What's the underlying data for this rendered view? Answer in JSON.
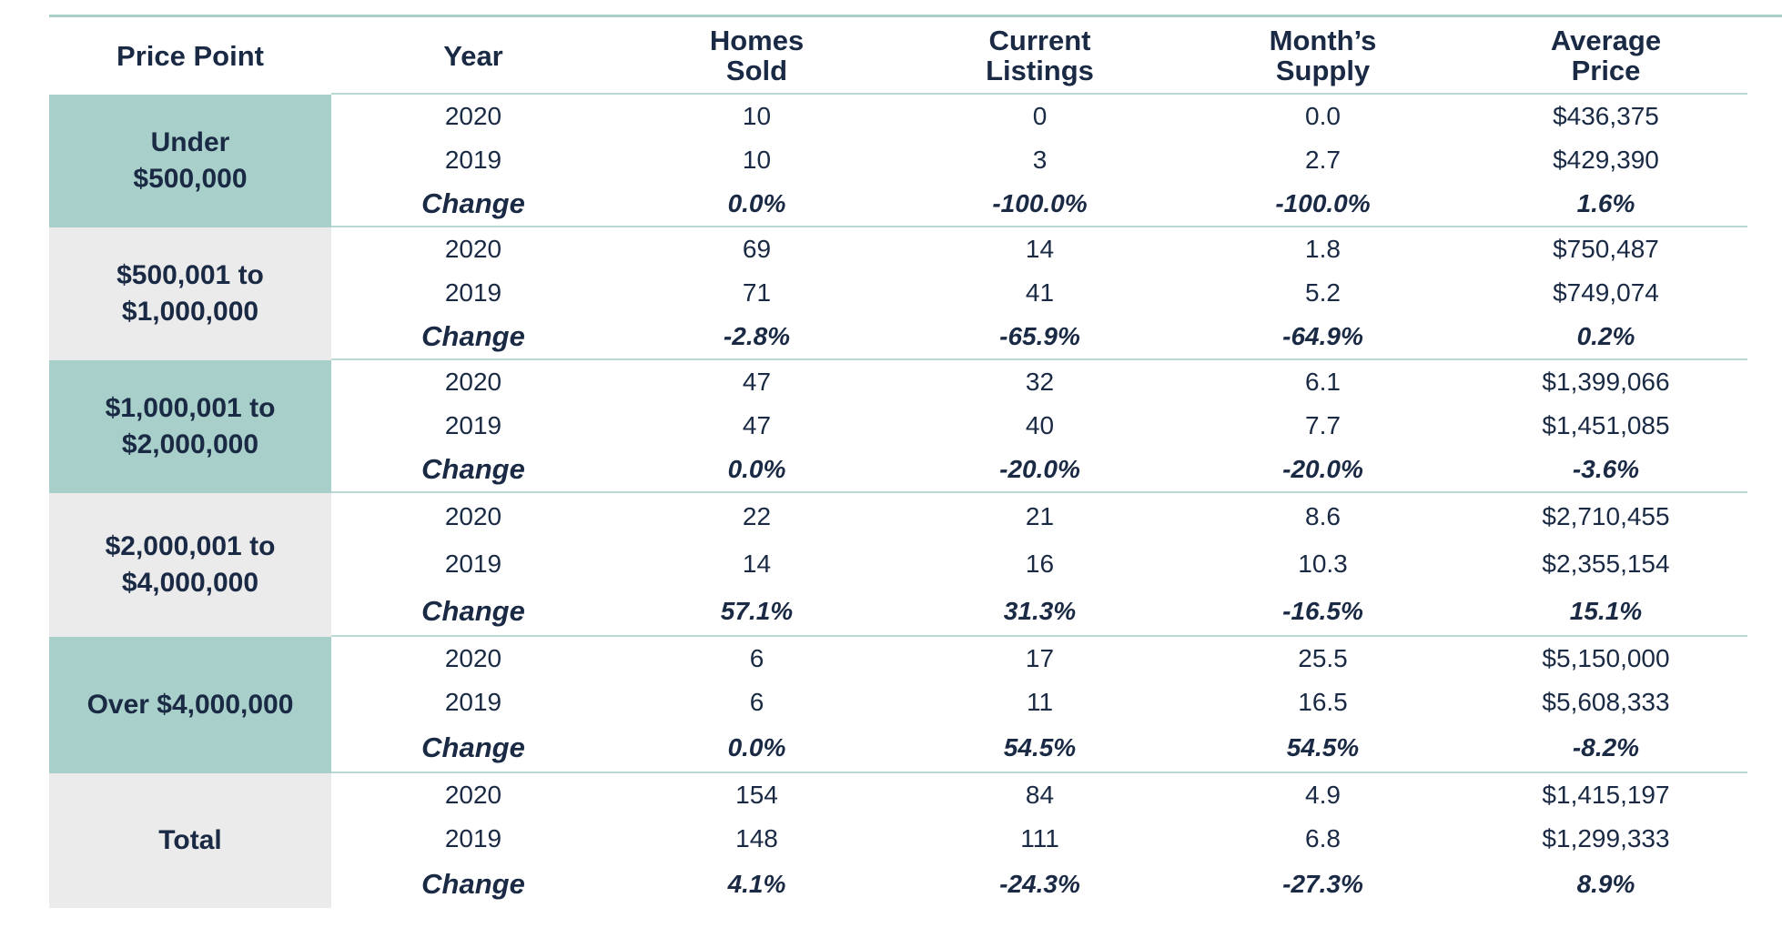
{
  "table": {
    "headers": {
      "price_point": "Price Point",
      "year": "Year",
      "homes_sold": "Homes\nSold",
      "current_listings": "Current\nListings",
      "months_supply": "Month’s\nSupply",
      "average_price": "Average\nPrice"
    },
    "groups": [
      {
        "label": "Under\n$500,000",
        "rows": [
          [
            "2020",
            "10",
            "0",
            "0.0",
            "$436,375"
          ],
          [
            "2019",
            "10",
            "3",
            "2.7",
            "$429,390"
          ],
          [
            "Change",
            "0.0%",
            "-100.0%",
            "-100.0%",
            "1.6%"
          ]
        ]
      },
      {
        "label": "$500,001 to\n$1,000,000",
        "rows": [
          [
            "2020",
            "69",
            "14",
            "1.8",
            "$750,487"
          ],
          [
            "2019",
            "71",
            "41",
            "5.2",
            "$749,074"
          ],
          [
            "Change",
            "-2.8%",
            "-65.9%",
            "-64.9%",
            "0.2%"
          ]
        ]
      },
      {
        "label": "$1,000,001 to\n$2,000,000",
        "rows": [
          [
            "2020",
            "47",
            "32",
            "6.1",
            "$1,399,066"
          ],
          [
            "2019",
            "47",
            "40",
            "7.7",
            "$1,451,085"
          ],
          [
            "Change",
            "0.0%",
            "-20.0%",
            "-20.0%",
            "-3.6%"
          ]
        ]
      },
      {
        "label": "$2,000,001 to\n$4,000,000",
        "rows": [
          [
            "2020",
            "22",
            "21",
            "8.6",
            "$2,710,455"
          ],
          [
            "2019",
            "14",
            "16",
            "10.3",
            "$2,355,154"
          ],
          [
            "Change",
            "57.1%",
            "31.3%",
            "-16.5%",
            "15.1%"
          ]
        ]
      },
      {
        "label": "Over $4,000,000",
        "rows": [
          [
            "2020",
            "6",
            "17",
            "25.5",
            "$5,150,000"
          ],
          [
            "2019",
            "6",
            "11",
            "16.5",
            "$5,608,333"
          ],
          [
            "Change",
            "0.0%",
            "54.5%",
            "54.5%",
            "-8.2%"
          ]
        ]
      },
      {
        "label": "Total",
        "rows": [
          [
            "2020",
            "154",
            "84",
            "4.9",
            "$1,415,197"
          ],
          [
            "2019",
            "148",
            "111",
            "6.8",
            "$1,299,333"
          ],
          [
            "Change",
            "4.1%",
            "-24.3%",
            "-27.3%",
            "8.9%"
          ]
        ]
      }
    ]
  }
}
